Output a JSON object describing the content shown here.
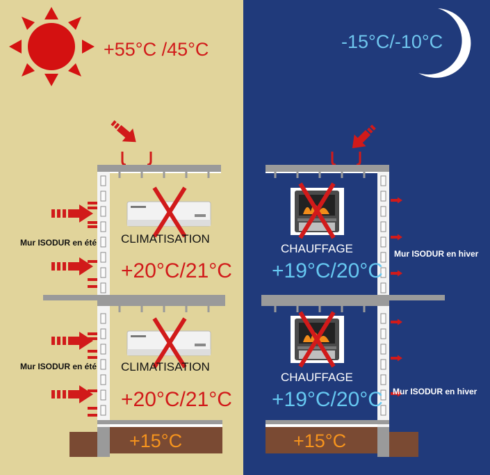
{
  "summer": {
    "outside_temp": "+55°C /45°C",
    "floors": [
      {
        "device": "CLIMATISATION",
        "indoor_temp": "+20°C/21°C",
        "wall_label": "Mur ISODUR en été"
      },
      {
        "device": "CLIMATISATION",
        "indoor_temp": "+20°C/21°C",
        "wall_label": "Mur ISODUR en été"
      }
    ],
    "ground_temp": "+15°C"
  },
  "winter": {
    "outside_temp": "-15°C/-10°C",
    "floors": [
      {
        "device": "CHAUFFAGE",
        "indoor_temp": "+19°C/20°C",
        "wall_label": "Mur ISODUR en hiver"
      },
      {
        "device": "CHAUFFAGE",
        "indoor_temp": "+19°C/20°C",
        "wall_label": "Mur ISODUR en hiver"
      }
    ],
    "ground_temp": "+15°C"
  },
  "icons": [
    "sun-icon",
    "moon-icon",
    "air-conditioner-icon",
    "wood-stove-icon",
    "cross-icon",
    "heat-arrow-icon"
  ],
  "colors": {
    "summer_bg": "#e1d49b",
    "winter_bg": "#203a7b",
    "heat_red": "#d11a1a",
    "cold_blue": "#6fc6ee",
    "ground_orange": "#f7941d"
  }
}
